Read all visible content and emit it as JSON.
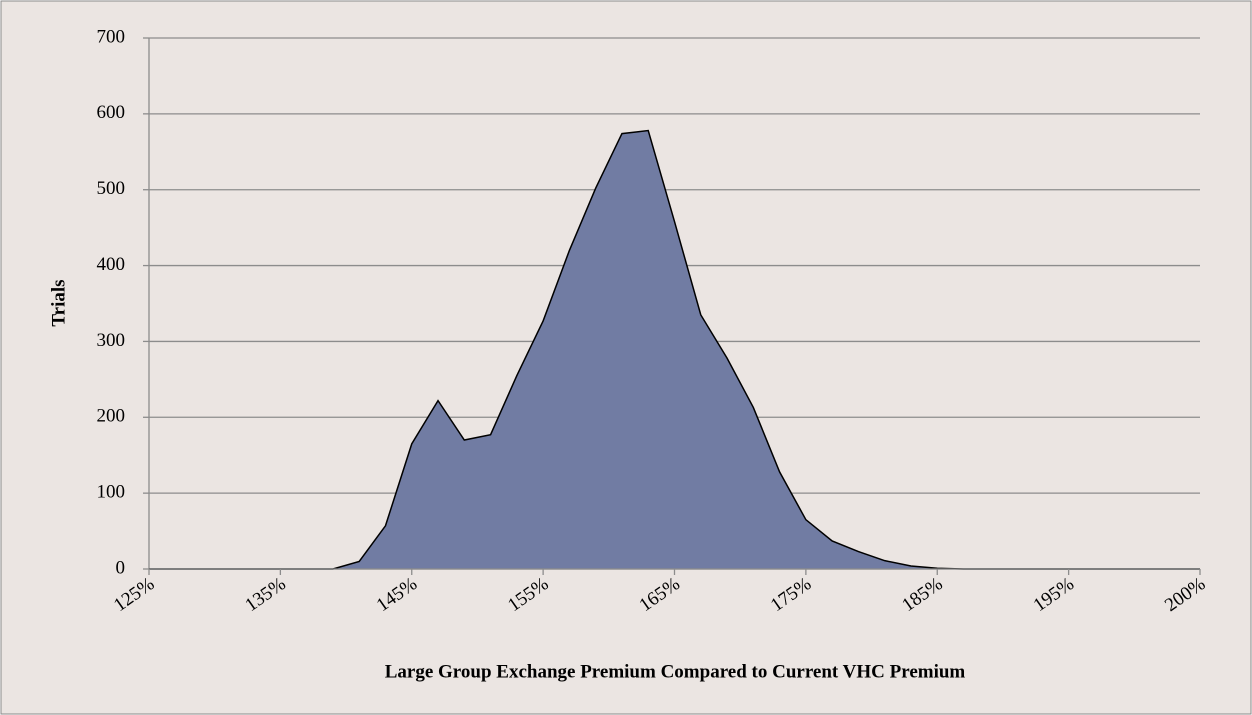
{
  "chart_data": {
    "type": "area",
    "x_label": "Large Group Exchange Premium Compared to Current VHC Premium",
    "y_label": "Trials",
    "categories": [
      "125%",
      null,
      null,
      null,
      null,
      "135%",
      null,
      null,
      null,
      null,
      "145%",
      null,
      null,
      null,
      null,
      "155%",
      null,
      null,
      null,
      null,
      "165%",
      null,
      null,
      null,
      null,
      "175%",
      null,
      null,
      null,
      null,
      "185%",
      null,
      null,
      null,
      null,
      "195%",
      null,
      null,
      null,
      null,
      "200%"
    ],
    "values": [
      0,
      0,
      0,
      0,
      0,
      0,
      0,
      0,
      10,
      57,
      165,
      222,
      170,
      177,
      255,
      327,
      420,
      502,
      574,
      578,
      458,
      335,
      278,
      213,
      128,
      65,
      37,
      23,
      11,
      4,
      1,
      0,
      0,
      0,
      0,
      0,
      0,
      0,
      0,
      0,
      0
    ],
    "color": "#717ca3",
    "ylim": [
      0,
      700
    ],
    "yticks": [
      0,
      100,
      200,
      300,
      400,
      500,
      600,
      700
    ],
    "grid": true
  }
}
